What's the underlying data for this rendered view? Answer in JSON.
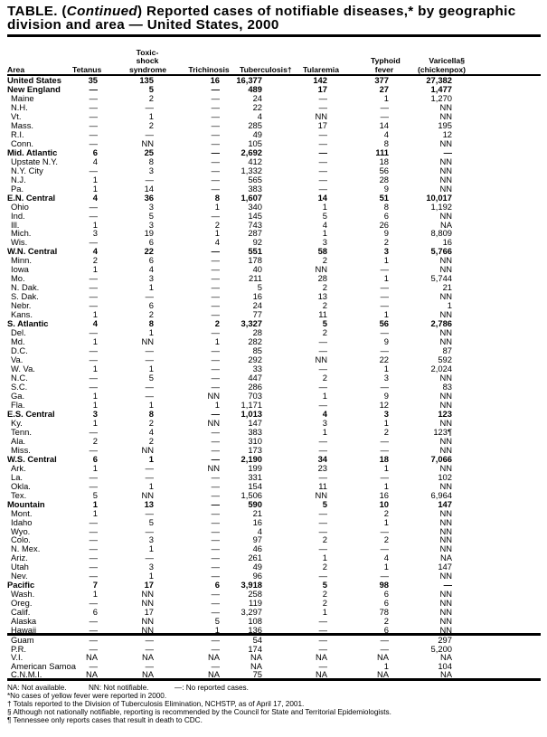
{
  "title": {
    "prefix": "TABLE. (",
    "continued": "Continued",
    "line1_rest": ") Reported cases of notifiable diseases,* by geographic",
    "line2": "division and area — United States, 2000"
  },
  "columns": [
    {
      "lines": [
        "Area"
      ]
    },
    {
      "lines": [
        "Tetanus"
      ]
    },
    {
      "lines": [
        "Toxic-",
        "shock",
        "syndrome"
      ]
    },
    {
      "lines": [
        "Trichinosis"
      ]
    },
    {
      "lines": [
        "Tuberculosis†"
      ]
    },
    {
      "lines": [
        "Tularemia"
      ]
    },
    {
      "lines": [
        "Typhoid",
        "fever"
      ]
    },
    {
      "lines": [
        "Varicella§",
        "(chickenpox)"
      ]
    }
  ],
  "rows": [
    [
      "United States",
      true,
      "35",
      "135",
      "16",
      "16,377",
      "142",
      "377",
      "27,382"
    ],
    [
      "New England",
      true,
      "—",
      "5",
      "—",
      "489",
      "17",
      "27",
      "1,477"
    ],
    [
      "Maine",
      false,
      "—",
      "2",
      "—",
      "24",
      "—",
      "1",
      "1,270"
    ],
    [
      "N.H.",
      false,
      "—",
      "—",
      "—",
      "22",
      "—",
      "—",
      "NN"
    ],
    [
      "Vt.",
      false,
      "—",
      "1",
      "—",
      "4",
      "NN",
      "—",
      "NN"
    ],
    [
      "Mass.",
      false,
      "—",
      "2",
      "—",
      "285",
      "17",
      "14",
      "195"
    ],
    [
      "R.I.",
      false,
      "—",
      "—",
      "—",
      "49",
      "—",
      "4",
      "12"
    ],
    [
      "Conn.",
      false,
      "—",
      "NN",
      "—",
      "105",
      "—",
      "8",
      "NN"
    ],
    [
      "Mid. Atlantic",
      true,
      "6",
      "25",
      "—",
      "2,692",
      "—",
      "111",
      "—"
    ],
    [
      "Upstate N.Y.",
      false,
      "4",
      "8",
      "—",
      "412",
      "—",
      "18",
      "NN"
    ],
    [
      "N.Y. City",
      false,
      "—",
      "3",
      "—",
      "1,332",
      "—",
      "56",
      "NN"
    ],
    [
      "N.J.",
      false,
      "1",
      "—",
      "—",
      "565",
      "—",
      "28",
      "NN"
    ],
    [
      "Pa.",
      false,
      "1",
      "14",
      "—",
      "383",
      "—",
      "9",
      "NN"
    ],
    [
      "E.N. Central",
      true,
      "4",
      "36",
      "8",
      "1,607",
      "14",
      "51",
      "10,017"
    ],
    [
      "Ohio",
      false,
      "—",
      "3",
      "1",
      "340",
      "1",
      "8",
      "1,192"
    ],
    [
      "Ind.",
      false,
      "—",
      "5",
      "—",
      "145",
      "5",
      "6",
      "NN"
    ],
    [
      "Ill.",
      false,
      "1",
      "3",
      "2",
      "743",
      "4",
      "26",
      "NA"
    ],
    [
      "Mich.",
      false,
      "3",
      "19",
      "1",
      "287",
      "1",
      "9",
      "8,809"
    ],
    [
      "Wis.",
      false,
      "—",
      "6",
      "4",
      "92",
      "3",
      "2",
      "16"
    ],
    [
      "W.N. Central",
      true,
      "4",
      "22",
      "—",
      "551",
      "58",
      "3",
      "5,766"
    ],
    [
      "Minn.",
      false,
      "2",
      "6",
      "—",
      "178",
      "2",
      "1",
      "NN"
    ],
    [
      "Iowa",
      false,
      "1",
      "4",
      "—",
      "40",
      "NN",
      "—",
      "NN"
    ],
    [
      "Mo.",
      false,
      "—",
      "3",
      "—",
      "211",
      "28",
      "1",
      "5,744"
    ],
    [
      "N. Dak.",
      false,
      "—",
      "1",
      "—",
      "5",
      "2",
      "—",
      "21"
    ],
    [
      "S. Dak.",
      false,
      "—",
      "—",
      "—",
      "16",
      "13",
      "—",
      "NN"
    ],
    [
      "Nebr.",
      false,
      "—",
      "6",
      "—",
      "24",
      "2",
      "—",
      "1"
    ],
    [
      "Kans.",
      false,
      "1",
      "2",
      "—",
      "77",
      "11",
      "1",
      "NN"
    ],
    [
      "S. Atlantic",
      true,
      "4",
      "8",
      "2",
      "3,327",
      "5",
      "56",
      "2,786"
    ],
    [
      "Del.",
      false,
      "—",
      "1",
      "—",
      "28",
      "2",
      "—",
      "NN"
    ],
    [
      "Md.",
      false,
      "1",
      "NN",
      "1",
      "282",
      "—",
      "9",
      "NN"
    ],
    [
      "D.C.",
      false,
      "—",
      "—",
      "—",
      "85",
      "—",
      "—",
      "87"
    ],
    [
      "Va.",
      false,
      "—",
      "—",
      "—",
      "292",
      "NN",
      "22",
      "592"
    ],
    [
      "W. Va.",
      false,
      "1",
      "1",
      "—",
      "33",
      "—",
      "1",
      "2,024"
    ],
    [
      "N.C.",
      false,
      "—",
      "5",
      "—",
      "447",
      "2",
      "3",
      "NN"
    ],
    [
      "S.C.",
      false,
      "—",
      "—",
      "—",
      "286",
      "—",
      "—",
      "83"
    ],
    [
      "Ga.",
      false,
      "1",
      "—",
      "NN",
      "703",
      "1",
      "9",
      "NN"
    ],
    [
      "Fla.",
      false,
      "1",
      "1",
      "1",
      "1,171",
      "—",
      "12",
      "NN"
    ],
    [
      "E.S. Central",
      true,
      "3",
      "8",
      "—",
      "1,013",
      "4",
      "3",
      "123"
    ],
    [
      "Ky.",
      false,
      "1",
      "2",
      "NN",
      "147",
      "3",
      "1",
      "NN"
    ],
    [
      "Tenn.",
      false,
      "—",
      "4",
      "—",
      "383",
      "1",
      "2",
      "123¶"
    ],
    [
      "Ala.",
      false,
      "2",
      "2",
      "—",
      "310",
      "—",
      "—",
      "NN"
    ],
    [
      "Miss.",
      false,
      "—",
      "NN",
      "—",
      "173",
      "—",
      "—",
      "NN"
    ],
    [
      "W.S. Central",
      true,
      "6",
      "1",
      "—",
      "2,190",
      "34",
      "18",
      "7,066"
    ],
    [
      "Ark.",
      false,
      "1",
      "—",
      "NN",
      "199",
      "23",
      "1",
      "NN"
    ],
    [
      "La.",
      false,
      "—",
      "—",
      "—",
      "331",
      "—",
      "—",
      "102"
    ],
    [
      "Okla.",
      false,
      "—",
      "1",
      "—",
      "154",
      "11",
      "1",
      "NN"
    ],
    [
      "Tex.",
      false,
      "5",
      "NN",
      "—",
      "1,506",
      "NN",
      "16",
      "6,964"
    ],
    [
      "Mountain",
      true,
      "1",
      "13",
      "—",
      "590",
      "5",
      "10",
      "147"
    ],
    [
      "Mont.",
      false,
      "1",
      "—",
      "—",
      "21",
      "—",
      "2",
      "NN"
    ],
    [
      "Idaho",
      false,
      "—",
      "5",
      "—",
      "16",
      "—",
      "1",
      "NN"
    ],
    [
      "Wyo.",
      false,
      "—",
      "—",
      "—",
      "4",
      "—",
      "—",
      "NN"
    ],
    [
      "Colo.",
      false,
      "—",
      "3",
      "—",
      "97",
      "2",
      "2",
      "NN"
    ],
    [
      "N. Mex.",
      false,
      "—",
      "1",
      "—",
      "46",
      "—",
      "—",
      "NN"
    ],
    [
      "Ariz.",
      false,
      "—",
      "—",
      "—",
      "261",
      "1",
      "4",
      "NA"
    ],
    [
      "Utah",
      false,
      "—",
      "3",
      "—",
      "49",
      "2",
      "1",
      "147"
    ],
    [
      "Nev.",
      false,
      "—",
      "1",
      "—",
      "96",
      "—",
      "—",
      "NN"
    ],
    [
      "Pacific",
      true,
      "7",
      "17",
      "6",
      "3,918",
      "5",
      "98",
      "—"
    ],
    [
      "Wash.",
      false,
      "1",
      "NN",
      "—",
      "258",
      "2",
      "6",
      "NN"
    ],
    [
      "Oreg.",
      false,
      "—",
      "NN",
      "—",
      "119",
      "2",
      "6",
      "NN"
    ],
    [
      "Calif.",
      false,
      "6",
      "17",
      "—",
      "3,297",
      "1",
      "78",
      "NN"
    ],
    [
      "Alaska",
      false,
      "—",
      "NN",
      "5",
      "108",
      "—",
      "2",
      "NN"
    ],
    [
      "Hawaii",
      false,
      "—",
      "NN",
      "1",
      "136",
      "—",
      "6",
      "NN"
    ]
  ],
  "territories": [
    [
      "Guam",
      false,
      "—",
      "—",
      "—",
      "54",
      "—",
      "—",
      "297"
    ],
    [
      "P.R.",
      false,
      "—",
      "—",
      "—",
      "174",
      "—",
      "—",
      "5,200"
    ],
    [
      "V.I.",
      false,
      "NA",
      "NA",
      "NA",
      "NA",
      "NA",
      "NA",
      "NA"
    ],
    [
      "American Samoa",
      false,
      "—",
      "—",
      "—",
      "NA",
      "—",
      "1",
      "104"
    ],
    [
      "C.N.M.I.",
      false,
      "NA",
      "NA",
      "NA",
      "75",
      "NA",
      "NA",
      "NA"
    ]
  ],
  "notes": {
    "legend": [
      "NA: Not available.",
      "NN: Not notifiable.",
      "—: No reported cases."
    ],
    "footnotes": [
      "*No cases of yellow fever were reported in 2000.",
      "† Totals reported to the Division of Tuberculosis Elimination, NCHSTP, as of April 17, 2001.",
      "§ Although not nationally notifiable, reporting is recommended by the Council for State and Territorial Epidemiologists.",
      "¶ Tennessee only reports cases that result in death to CDC."
    ]
  }
}
